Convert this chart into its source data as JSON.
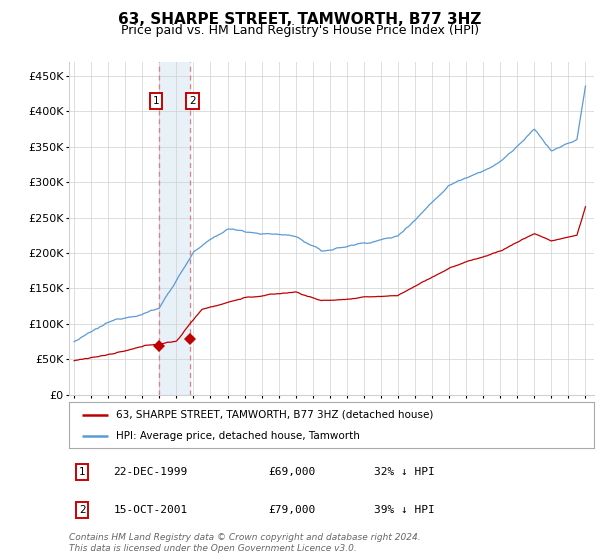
{
  "title": "63, SHARPE STREET, TAMWORTH, B77 3HZ",
  "subtitle": "Price paid vs. HM Land Registry's House Price Index (HPI)",
  "footer": "Contains HM Land Registry data © Crown copyright and database right 2024.\nThis data is licensed under the Open Government Licence v3.0.",
  "legend_label_red": "63, SHARPE STREET, TAMWORTH, B77 3HZ (detached house)",
  "legend_label_blue": "HPI: Average price, detached house, Tamworth",
  "transactions": [
    {
      "label": "1",
      "date": "22-DEC-1999",
      "price": 69000,
      "pct": "32% ↓ HPI"
    },
    {
      "label": "2",
      "date": "15-OCT-2001",
      "price": 79000,
      "pct": "39% ↓ HPI"
    }
  ],
  "t1_year": 1999.958,
  "t2_year": 2001.792,
  "t1_price": 69000,
  "t2_price": 79000,
  "ylim": [
    0,
    470000
  ],
  "yticks": [
    0,
    50000,
    100000,
    150000,
    200000,
    250000,
    300000,
    350000,
    400000,
    450000
  ],
  "ytick_labels": [
    "£0",
    "£50K",
    "£100K",
    "£150K",
    "£200K",
    "£250K",
    "£300K",
    "£350K",
    "£400K",
    "£450K"
  ],
  "xlim_start": 1994.7,
  "xlim_end": 2025.5,
  "xticks": [
    1995,
    1996,
    1997,
    1998,
    1999,
    2000,
    2001,
    2002,
    2003,
    2004,
    2005,
    2006,
    2007,
    2008,
    2009,
    2010,
    2011,
    2012,
    2013,
    2014,
    2015,
    2016,
    2017,
    2018,
    2019,
    2020,
    2021,
    2022,
    2023,
    2024,
    2025
  ],
  "hpi_color": "#5b9bd5",
  "price_color": "#c00000",
  "shade_color": "#e8f0f8",
  "dashed_color": "#e08080",
  "background_color": "#ffffff",
  "grid_color": "#d0d0d0",
  "box_color": "#cc0000",
  "title_fontsize": 11,
  "subtitle_fontsize": 9
}
